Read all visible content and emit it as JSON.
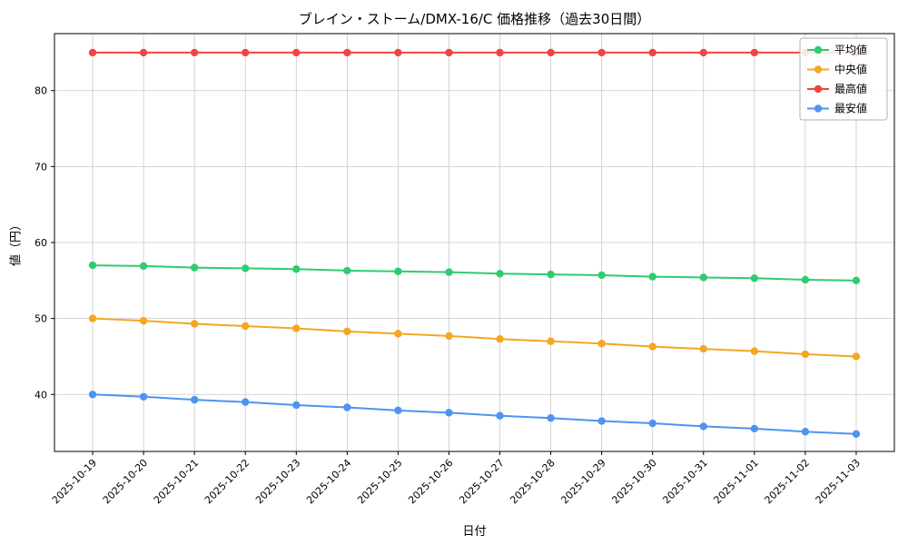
{
  "chart_data": {
    "type": "line",
    "title": "ブレイン・ストーム/DMX-16/C 価格推移（過去30日間）",
    "xlabel": "日付",
    "ylabel": "値（円）",
    "x": [
      "2025-10-19",
      "2025-10-20",
      "2025-10-21",
      "2025-10-22",
      "2025-10-23",
      "2025-10-24",
      "2025-10-25",
      "2025-10-26",
      "2025-10-27",
      "2025-10-28",
      "2025-10-29",
      "2025-10-30",
      "2025-10-31",
      "2025-11-01",
      "2025-11-02",
      "2025-11-03"
    ],
    "series": [
      {
        "name": "平均値",
        "color": "#2ecc71",
        "values": [
          57.0,
          56.9,
          56.7,
          56.6,
          56.5,
          56.3,
          56.2,
          56.1,
          55.9,
          55.8,
          55.7,
          55.5,
          55.4,
          55.3,
          55.1,
          55.0
        ]
      },
      {
        "name": "中央値",
        "color": "#f5a623",
        "values": [
          50.0,
          49.7,
          49.3,
          49.0,
          48.7,
          48.3,
          48.0,
          47.7,
          47.3,
          47.0,
          46.7,
          46.3,
          46.0,
          45.7,
          45.3,
          45.0
        ]
      },
      {
        "name": "最高値",
        "color": "#ef4444",
        "values": [
          85.0,
          85.0,
          85.0,
          85.0,
          85.0,
          85.0,
          85.0,
          85.0,
          85.0,
          85.0,
          85.0,
          85.0,
          85.0,
          85.0,
          85.0,
          85.0
        ]
      },
      {
        "name": "最安値",
        "color": "#4d94f0",
        "values": [
          40.0,
          39.7,
          39.3,
          39.0,
          38.6,
          38.3,
          37.9,
          37.6,
          37.2,
          36.9,
          36.5,
          36.2,
          35.8,
          35.5,
          35.1,
          34.8
        ]
      }
    ],
    "ylim": [
      32.5,
      87.5
    ],
    "yticks": [
      40,
      50,
      60,
      70,
      80
    ],
    "grid": true,
    "legend_position": "upper right"
  },
  "style": {
    "grid_color": "#c9c9c9",
    "axis_color": "#000000",
    "legend_border_color": "#b0b0b0",
    "background": "#ffffff"
  }
}
